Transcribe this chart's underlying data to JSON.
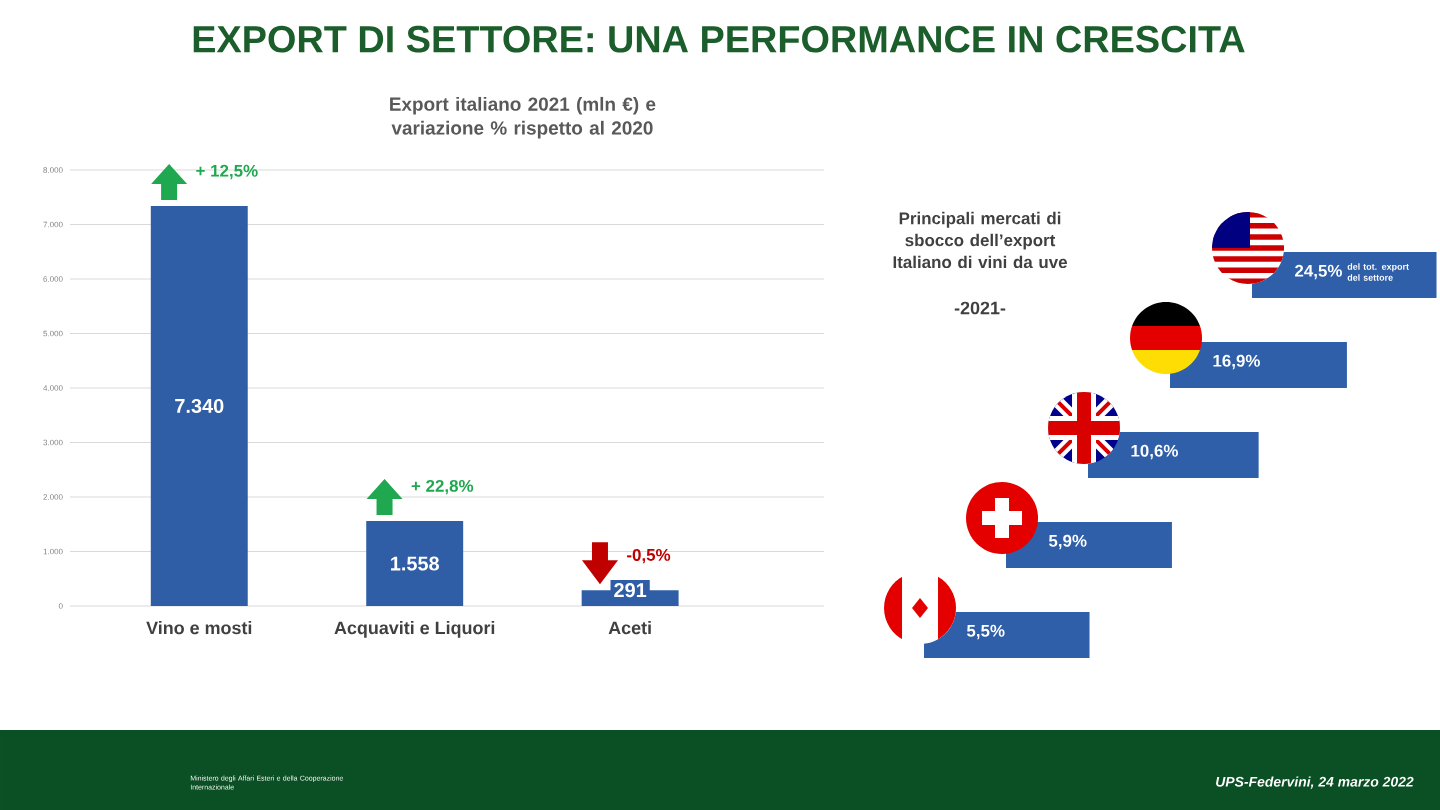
{
  "chart_data": [
    {
      "type": "bar",
      "title": "EXPORT DI SETTORE: UNA PERFORMANCE IN CRESCITA",
      "subtitle": "Export italiano 2021 (mln €) e variazione % rispetto al 2020",
      "categories": [
        "Vino e mosti",
        "Acquaviti e Liquori",
        "Aceti"
      ],
      "values": [
        7340,
        1558,
        291
      ],
      "value_labels": [
        "7.340",
        "1.558",
        "291"
      ],
      "color": "#2f5ea6",
      "ylim": [
        0,
        8000
      ],
      "yticks": [
        0,
        {
          "value": 1000,
          "label": "1.000"
        },
        {
          "value": 2000,
          "label": "2.000"
        },
        {
          "value": 3000,
          "label": "3.000"
        },
        {
          "value": 4000,
          "label": "4.000"
        },
        {
          "value": 5000,
          "label": "5.000"
        },
        {
          "value": 6000,
          "label": "6.000"
        },
        {
          "value": 7000,
          "label": "7.000"
        },
        {
          "value": 8000,
          "label": "8.000"
        }
      ],
      "grid": "y",
      "annotations": [
        {
          "text": "+ 12,5%",
          "x": "Vino e mosti",
          "y": 7340
        },
        {
          "text": "+ 22,8%",
          "x": "Acquaviti e Liquori",
          "y": 1558
        },
        {
          "text": "-0,5%",
          "x": "Aceti",
          "y": 291
        },
        "Ministero degli Affari Esteri e della Cooperazione Internazionale",
        "UPS-Federvini, 24 marzo 2022"
      ]
    },
    {
      "type": "other",
      "title": "Principali mercati di sbocco dell’export Italiano di vini da uve",
      "subtitle": "-2021-",
      "categories": [
        null,
        null,
        null,
        null,
        null
      ],
      "values": [
        24.5,
        16.9,
        10.6,
        5.9,
        5.5
      ],
      "value_labels": [
        "24,5%",
        "16,9%",
        "10,6%",
        "5,9%",
        "5,5%"
      ],
      "color": "#2e5fa8",
      "annotations": [
        "del tot. export del settore"
      ]
    }
  ]
}
